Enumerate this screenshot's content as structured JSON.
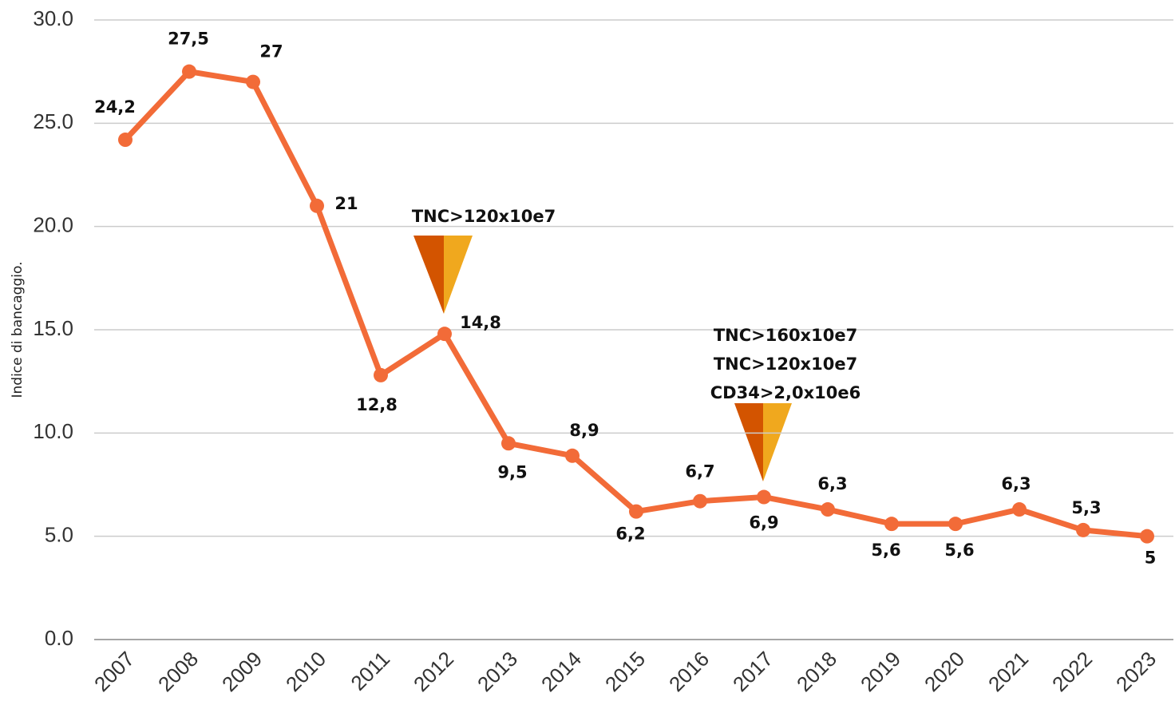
{
  "chart_data": {
    "type": "line",
    "y_label": "Indice di bancaggio.",
    "categories": [
      "2007",
      "2008",
      "2009",
      "2010",
      "2011",
      "2012",
      "2013",
      "2014",
      "2015",
      "2016",
      "2017",
      "2018",
      "2019",
      "2020",
      "2021",
      "2022",
      "2023"
    ],
    "series": [
      {
        "name": "Indice di bancaggio",
        "color": "#f26b38",
        "values": [
          24.2,
          27.5,
          27,
          21,
          12.8,
          14.8,
          9.5,
          8.9,
          6.2,
          6.7,
          6.9,
          6.3,
          5.6,
          5.6,
          6.3,
          5.3,
          5
        ],
        "value_labels": [
          "24,2",
          "27,5",
          "27",
          "21",
          "12,8",
          "14,8",
          "9,5",
          "8,9",
          "6,2",
          "6,7",
          "6,9",
          "6,3",
          "5,6",
          "5,6",
          "6,3",
          "5,3",
          "5"
        ]
      }
    ],
    "ylim": [
      0,
      30
    ],
    "yticks": [
      {
        "value": 0,
        "label": "0.0"
      },
      {
        "value": 5,
        "label": "5.0"
      },
      {
        "value": 10,
        "label": "10.0"
      },
      {
        "value": 15,
        "label": "15.0"
      },
      {
        "value": 20,
        "label": "20.0"
      },
      {
        "value": 25,
        "label": "25.0"
      },
      {
        "value": 30,
        "label": "30.0"
      }
    ],
    "grid": true,
    "annotations": [
      {
        "lines": [
          "TNC>120x10e7"
        ]
      },
      {
        "lines": [
          "TNC>160x10e7",
          "TNC>120x10e7",
          "CD34>2,0x10e6"
        ]
      }
    ]
  }
}
